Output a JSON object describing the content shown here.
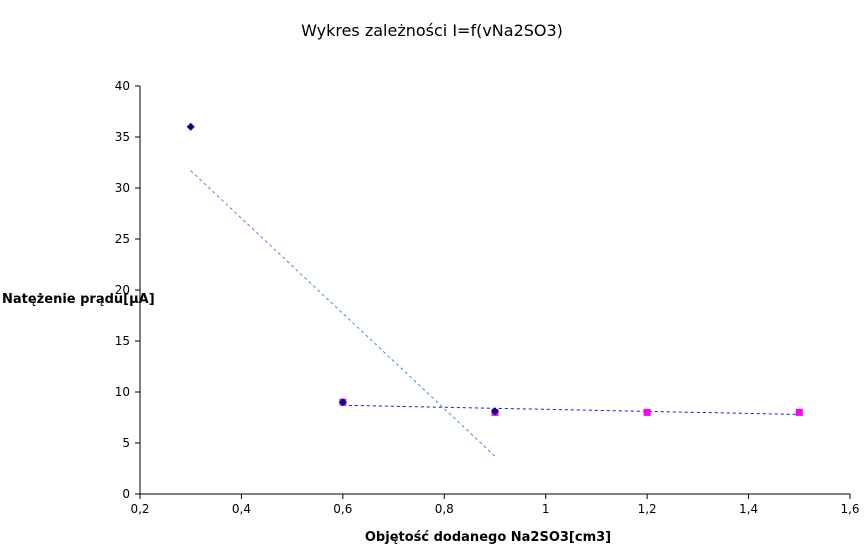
{
  "chart_data": {
    "type": "scatter",
    "title": "Wykres zależności I=f(vNa2SO3)",
    "xlabel": "Objętość dodanego Na2SO3[cm3]",
    "ylabel": "Natężenie prądu[µA]",
    "xlim": [
      0.2,
      1.6
    ],
    "ylim": [
      0,
      40
    ],
    "x_ticks": [
      "0,2",
      "0,4",
      "0,6",
      "0,8",
      "1",
      "1,2",
      "1,4",
      "1,6"
    ],
    "y_ticks": [
      "0",
      "5",
      "10",
      "15",
      "20",
      "25",
      "30",
      "35",
      "40"
    ],
    "grid": false,
    "legend": "none",
    "series": [
      {
        "marker": "diamond",
        "color": "#000080",
        "points": [
          [
            0.3,
            36
          ],
          [
            0.6,
            9
          ],
          [
            0.9,
            8.1
          ]
        ]
      },
      {
        "marker": "square",
        "color": "#ff00ff",
        "points": [
          [
            0.6,
            9
          ],
          [
            0.9,
            8
          ],
          [
            1.2,
            8
          ],
          [
            1.5,
            8
          ]
        ]
      }
    ],
    "trendlines": [
      {
        "style": "dashed",
        "color": "#4a86e8",
        "from": [
          0.3,
          31.7
        ],
        "to": [
          0.9,
          3.7
        ]
      },
      {
        "style": "dashed",
        "color": "#1a1adc",
        "from": [
          0.6,
          8.7
        ],
        "to": [
          1.5,
          7.8
        ]
      }
    ]
  }
}
